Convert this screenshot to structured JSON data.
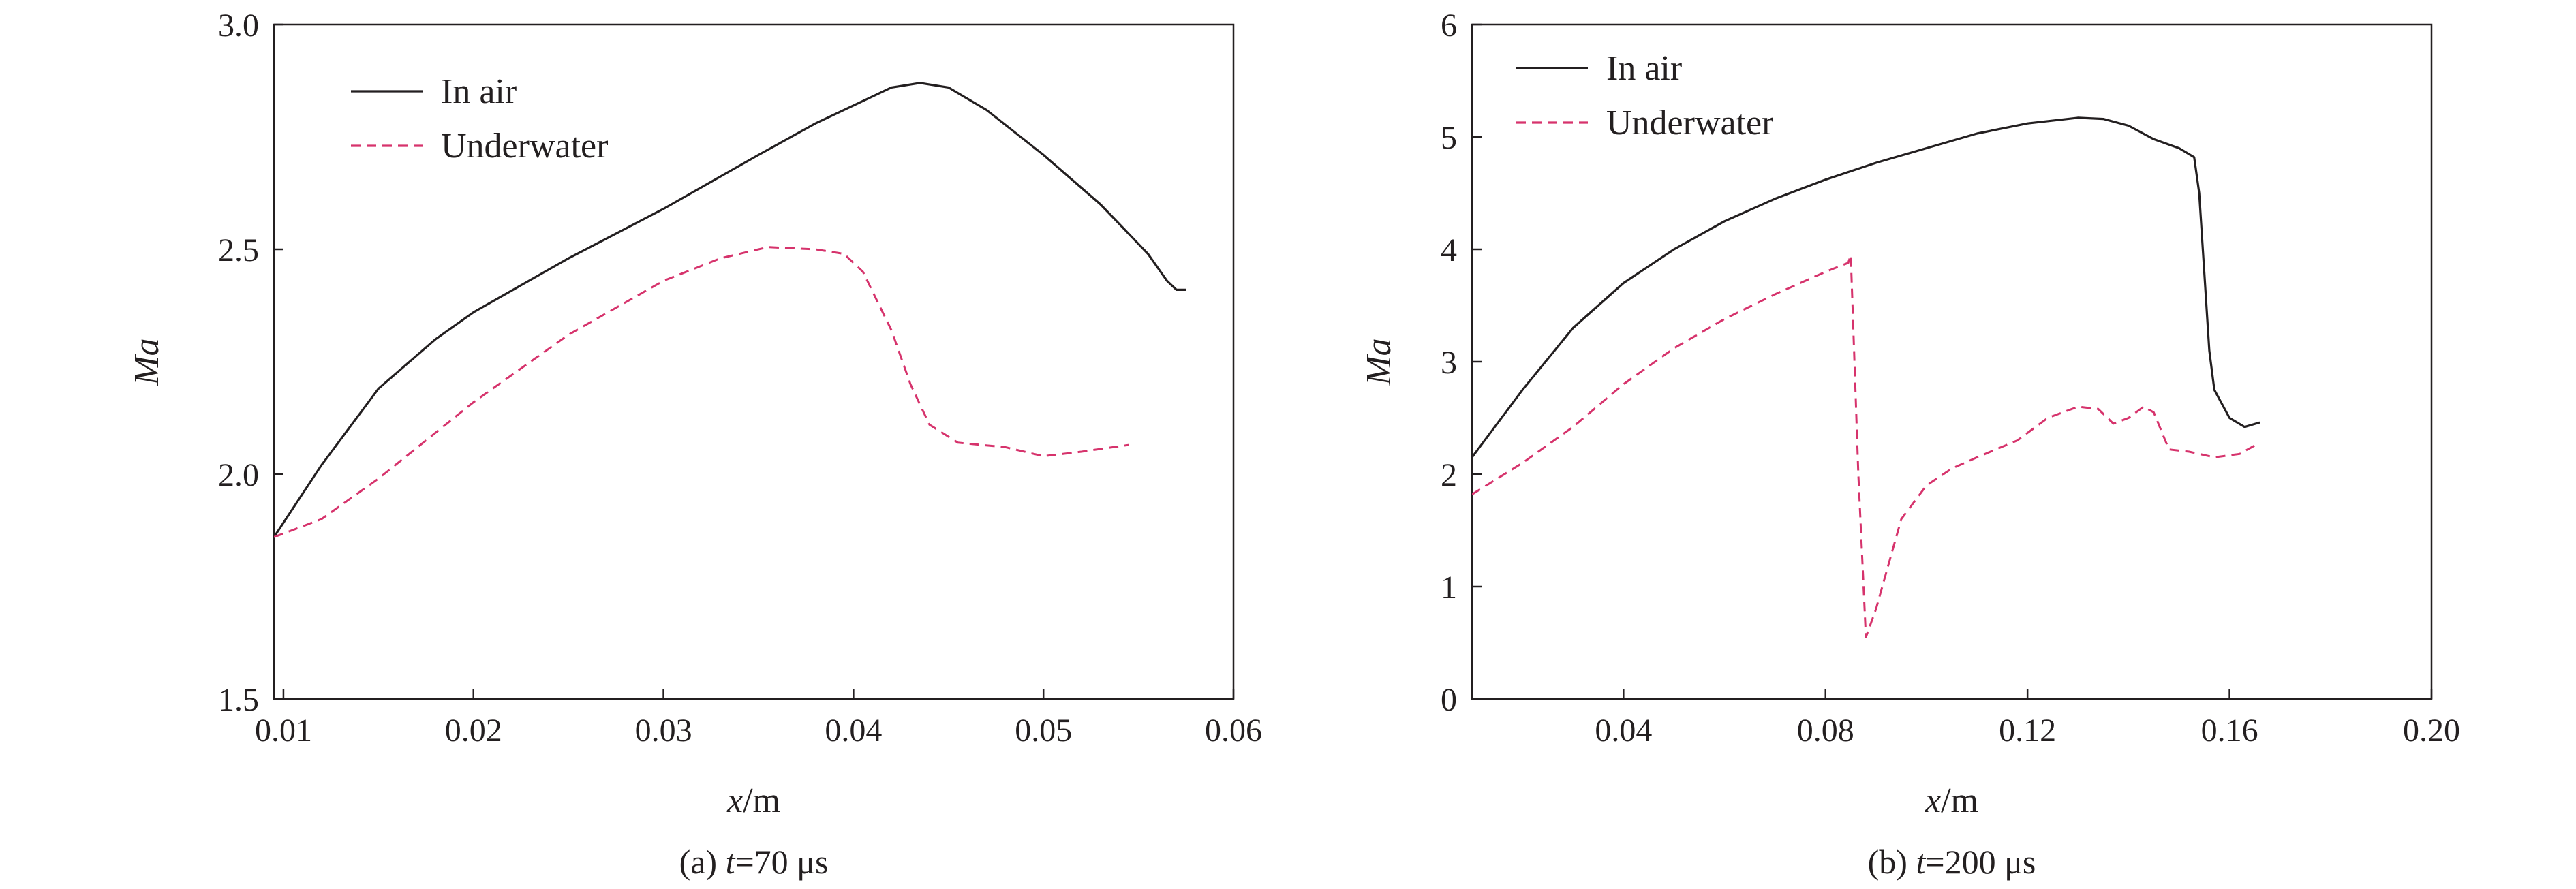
{
  "chart_data": [
    {
      "type": "line",
      "caption_prefix": "(a) ",
      "caption_var": "t",
      "caption_suffix": "=70 μs",
      "xlabel_var": "x",
      "xlabel_unit": "/m",
      "ylabel": "Ma",
      "xlim": [
        0.0095,
        0.06
      ],
      "ylim": [
        1.5,
        3.0
      ],
      "xticks": [
        0.01,
        0.02,
        0.03,
        0.04,
        0.05,
        0.06
      ],
      "xtick_labels": [
        "0.01",
        "0.02",
        "0.03",
        "0.04",
        "0.05",
        "0.06"
      ],
      "yticks": [
        1.5,
        2.0,
        2.5,
        3.0
      ],
      "ytick_labels": [
        "1.5",
        "2.0",
        "2.5",
        "3.0"
      ],
      "grid": false,
      "legend_position": "top-left",
      "series": [
        {
          "name": "In air",
          "style": "solid",
          "color": "#231f20",
          "x": [
            0.0095,
            0.012,
            0.015,
            0.018,
            0.02,
            0.025,
            0.03,
            0.035,
            0.038,
            0.04,
            0.042,
            0.0435,
            0.045,
            0.047,
            0.05,
            0.053,
            0.0555,
            0.0565,
            0.057,
            0.0575
          ],
          "y": [
            1.86,
            2.02,
            2.19,
            2.3,
            2.36,
            2.48,
            2.59,
            2.71,
            2.78,
            2.82,
            2.86,
            2.87,
            2.86,
            2.81,
            2.71,
            2.6,
            2.49,
            2.43,
            2.41,
            2.41
          ]
        },
        {
          "name": "Underwater",
          "style": "dashed",
          "color": "#d6336c",
          "x": [
            0.0095,
            0.012,
            0.015,
            0.02,
            0.025,
            0.03,
            0.033,
            0.0355,
            0.038,
            0.0395,
            0.0405,
            0.042,
            0.043,
            0.044,
            0.0455,
            0.048,
            0.05,
            0.052,
            0.0545
          ],
          "y": [
            1.86,
            1.9,
            1.99,
            2.16,
            2.31,
            2.43,
            2.48,
            2.505,
            2.5,
            2.49,
            2.45,
            2.32,
            2.2,
            2.11,
            2.07,
            2.06,
            2.04,
            2.05,
            2.065
          ]
        }
      ]
    },
    {
      "type": "line",
      "caption_prefix": "(b) ",
      "caption_var": "t",
      "caption_suffix": "=200 μs",
      "xlabel_var": "x",
      "xlabel_unit": "/m",
      "ylabel": "Ma",
      "xlim": [
        0.01,
        0.2
      ],
      "ylim": [
        0,
        6
      ],
      "xticks": [
        0.04,
        0.08,
        0.12,
        0.16,
        0.2
      ],
      "xtick_labels": [
        "0.04",
        "0.08",
        "0.12",
        "0.16",
        "0.20"
      ],
      "yticks": [
        0,
        1,
        2,
        3,
        4,
        5,
        6
      ],
      "ytick_labels": [
        "0",
        "1",
        "2",
        "3",
        "4",
        "5",
        "6"
      ],
      "grid": false,
      "legend_position": "top-left",
      "series": [
        {
          "name": "In air",
          "style": "solid",
          "color": "#231f20",
          "x": [
            0.01,
            0.02,
            0.03,
            0.04,
            0.05,
            0.06,
            0.07,
            0.08,
            0.09,
            0.1,
            0.11,
            0.12,
            0.13,
            0.135,
            0.14,
            0.145,
            0.15,
            0.153,
            0.154,
            0.155,
            0.156,
            0.157,
            0.16,
            0.163,
            0.166
          ],
          "y": [
            2.15,
            2.75,
            3.3,
            3.7,
            4.0,
            4.25,
            4.45,
            4.62,
            4.77,
            4.9,
            5.03,
            5.12,
            5.17,
            5.16,
            5.1,
            4.98,
            4.9,
            4.82,
            4.5,
            3.8,
            3.1,
            2.75,
            2.5,
            2.42,
            2.46
          ]
        },
        {
          "name": "Underwater",
          "style": "dashed",
          "color": "#d6336c",
          "x": [
            0.01,
            0.02,
            0.03,
            0.04,
            0.05,
            0.06,
            0.07,
            0.08,
            0.0845,
            0.085,
            0.0865,
            0.088,
            0.09,
            0.095,
            0.1,
            0.105,
            0.11,
            0.118,
            0.124,
            0.13,
            0.134,
            0.137,
            0.14,
            0.143,
            0.145,
            0.148,
            0.152,
            0.157,
            0.162,
            0.166
          ],
          "y": [
            1.82,
            2.1,
            2.42,
            2.8,
            3.12,
            3.38,
            3.6,
            3.8,
            3.88,
            3.95,
            2.0,
            0.55,
            0.8,
            1.6,
            1.9,
            2.05,
            2.15,
            2.3,
            2.5,
            2.6,
            2.58,
            2.45,
            2.5,
            2.6,
            2.55,
            2.22,
            2.2,
            2.15,
            2.18,
            2.28
          ]
        }
      ]
    }
  ]
}
